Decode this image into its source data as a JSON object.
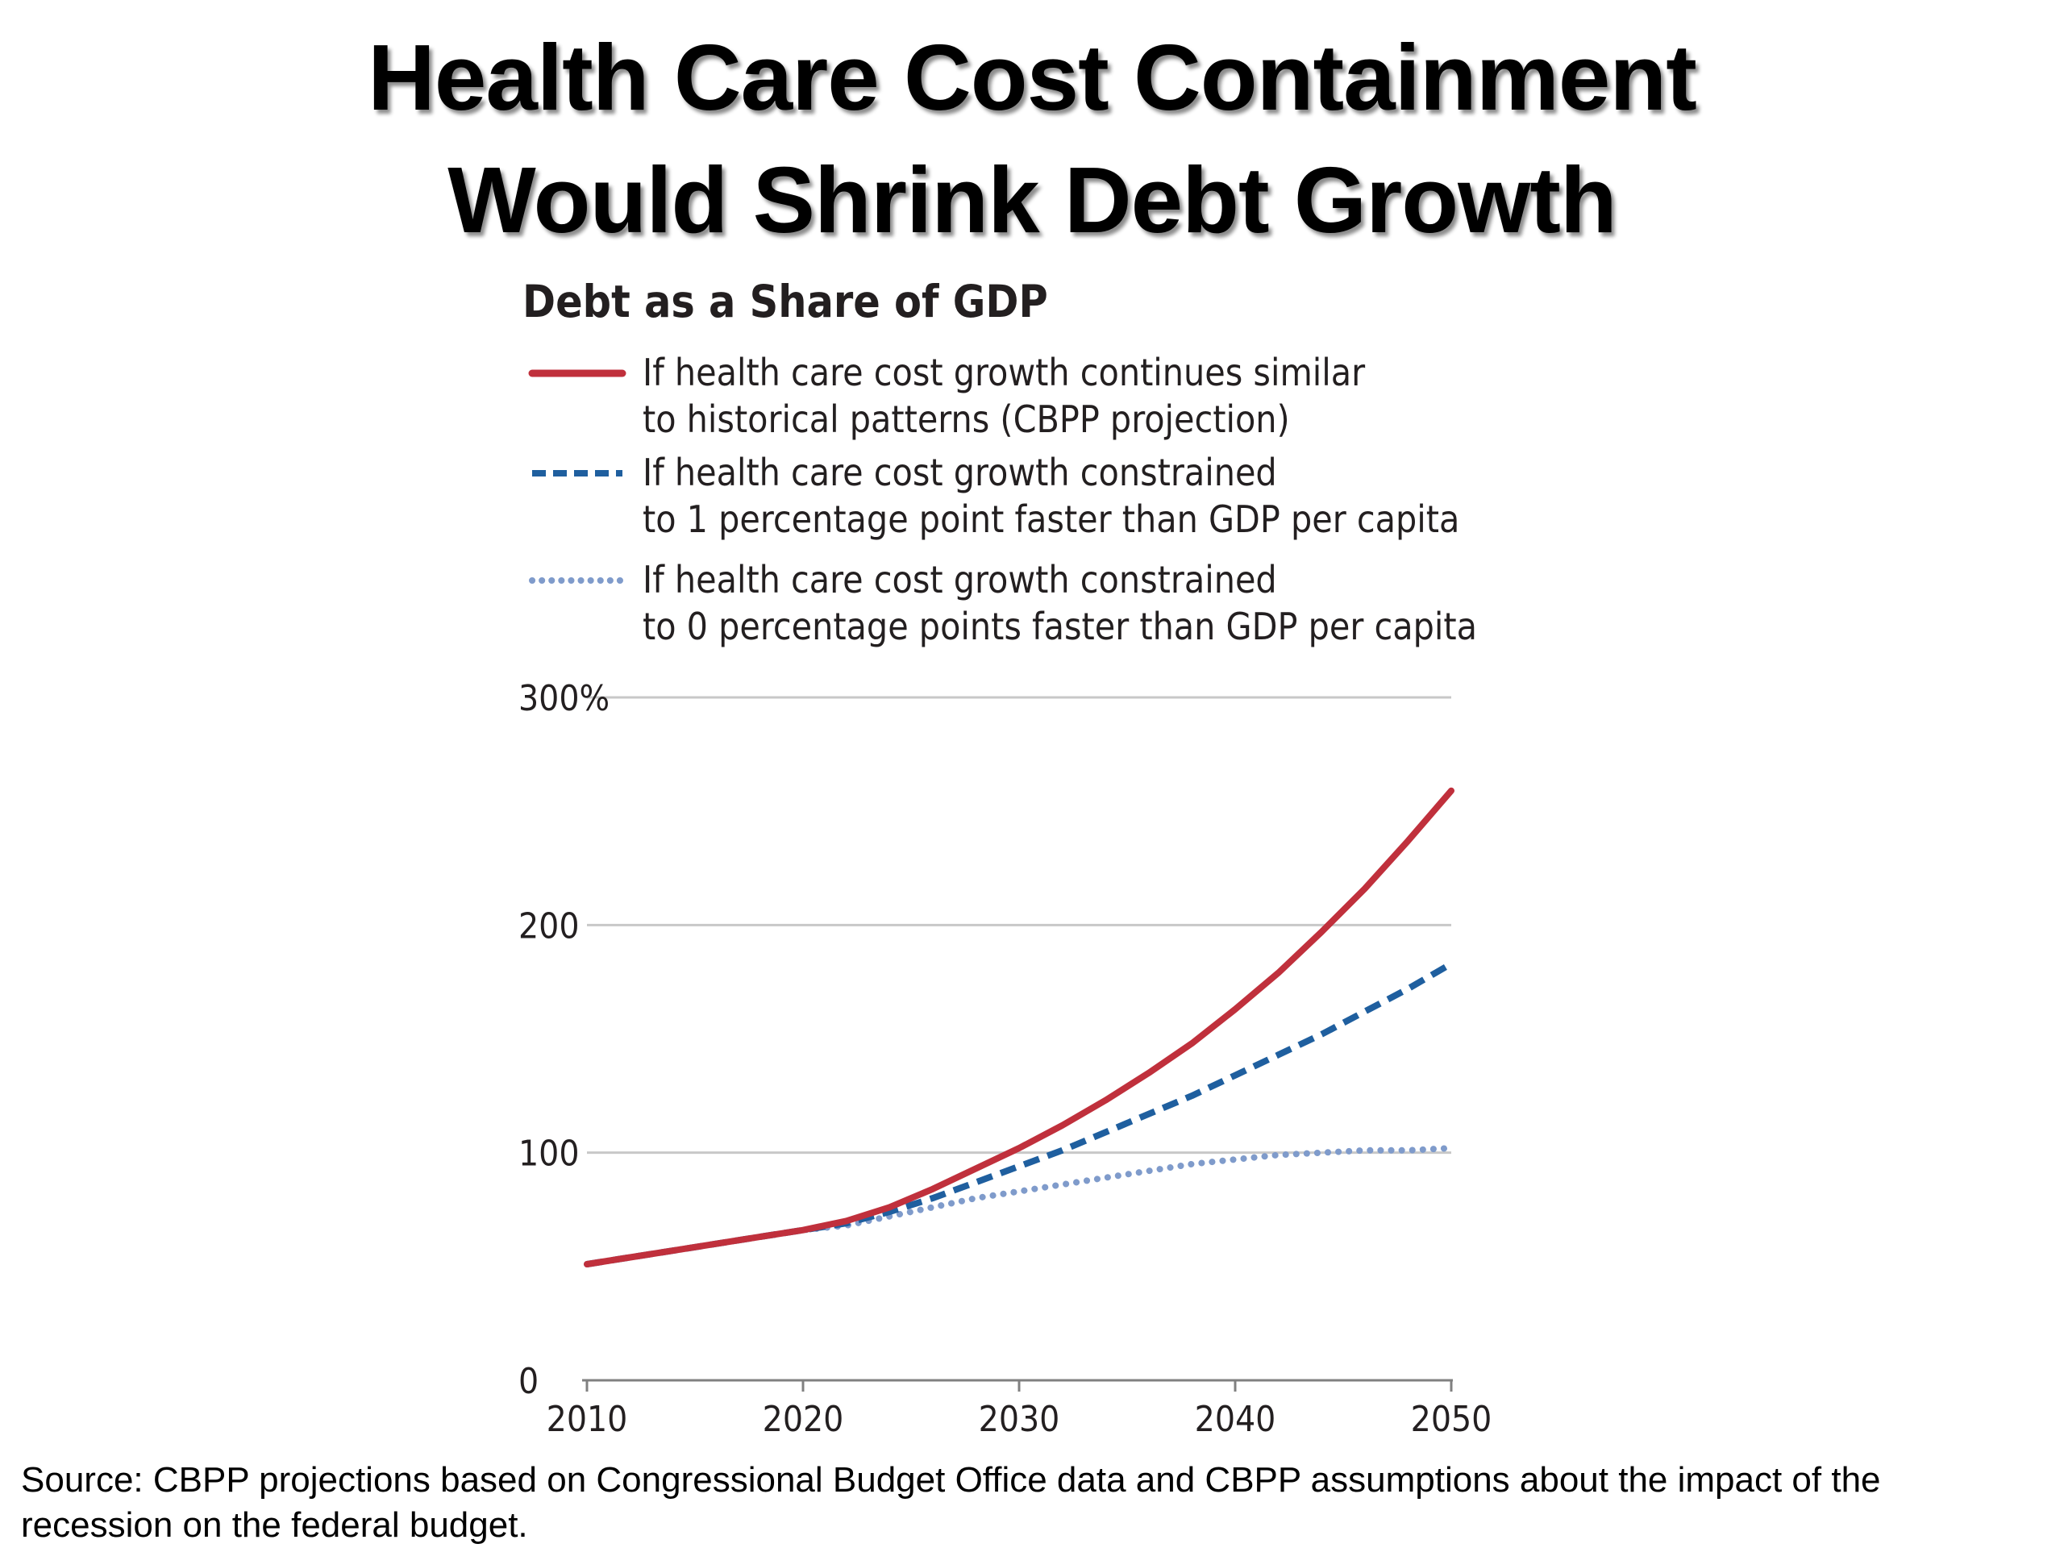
{
  "slide": {
    "title_line1": "Health Care Cost Containment",
    "title_line2": "Would Shrink Debt Growth",
    "source": "Source: CBPP projections based on Congressional Budget Office data and CBPP assumptions about the impact of the recession on the federal budget."
  },
  "chart_data": {
    "type": "line",
    "title": "Debt as a Share of GDP",
    "xlabel": "",
    "ylabel": "",
    "xlim": [
      2010,
      2050
    ],
    "ylim": [
      0,
      300
    ],
    "x_ticks": [
      "2010",
      "2020",
      "2030",
      "2040",
      "2050"
    ],
    "y_ticks": [
      {
        "value": 0,
        "label": "0"
      },
      {
        "value": 100,
        "label": "100"
      },
      {
        "value": 200,
        "label": "200"
      },
      {
        "value": 300,
        "label": "300%"
      }
    ],
    "grid": "horizontal",
    "legend_position": "top",
    "x": [
      2010,
      2012,
      2014,
      2016,
      2018,
      2020,
      2022,
      2024,
      2026,
      2028,
      2030,
      2032,
      2034,
      2036,
      2038,
      2040,
      2042,
      2044,
      2046,
      2048,
      2050
    ],
    "series": [
      {
        "name_lines": [
          "If health care cost growth continues similar",
          "to historical patterns (CBPP projection)"
        ],
        "color": "#c0303c",
        "style": "solid",
        "values": [
          51,
          54,
          57,
          60,
          63,
          66,
          70,
          76,
          84,
          93,
          102,
          112,
          123,
          135,
          148,
          163,
          179,
          197,
          216,
          237,
          259
        ]
      },
      {
        "name_lines": [
          "If health care cost growth constrained",
          "to 1 percentage point faster than GDP per capita"
        ],
        "color": "#1f5f9f",
        "style": "dashed",
        "values": [
          51,
          54,
          57,
          60,
          63,
          66,
          69,
          74,
          80,
          87,
          94,
          101,
          109,
          117,
          125,
          134,
          143,
          152,
          162,
          172,
          183
        ]
      },
      {
        "name_lines": [
          "If health care cost growth constrained",
          "to 0 percentage points faster than GDP per capita"
        ],
        "color": "#7f9bcb",
        "style": "dotted",
        "values": [
          51,
          54,
          57,
          60,
          63,
          66,
          68,
          72,
          76,
          80,
          83,
          86,
          89,
          92,
          95,
          97,
          99,
          100,
          101,
          101,
          102
        ]
      }
    ]
  }
}
